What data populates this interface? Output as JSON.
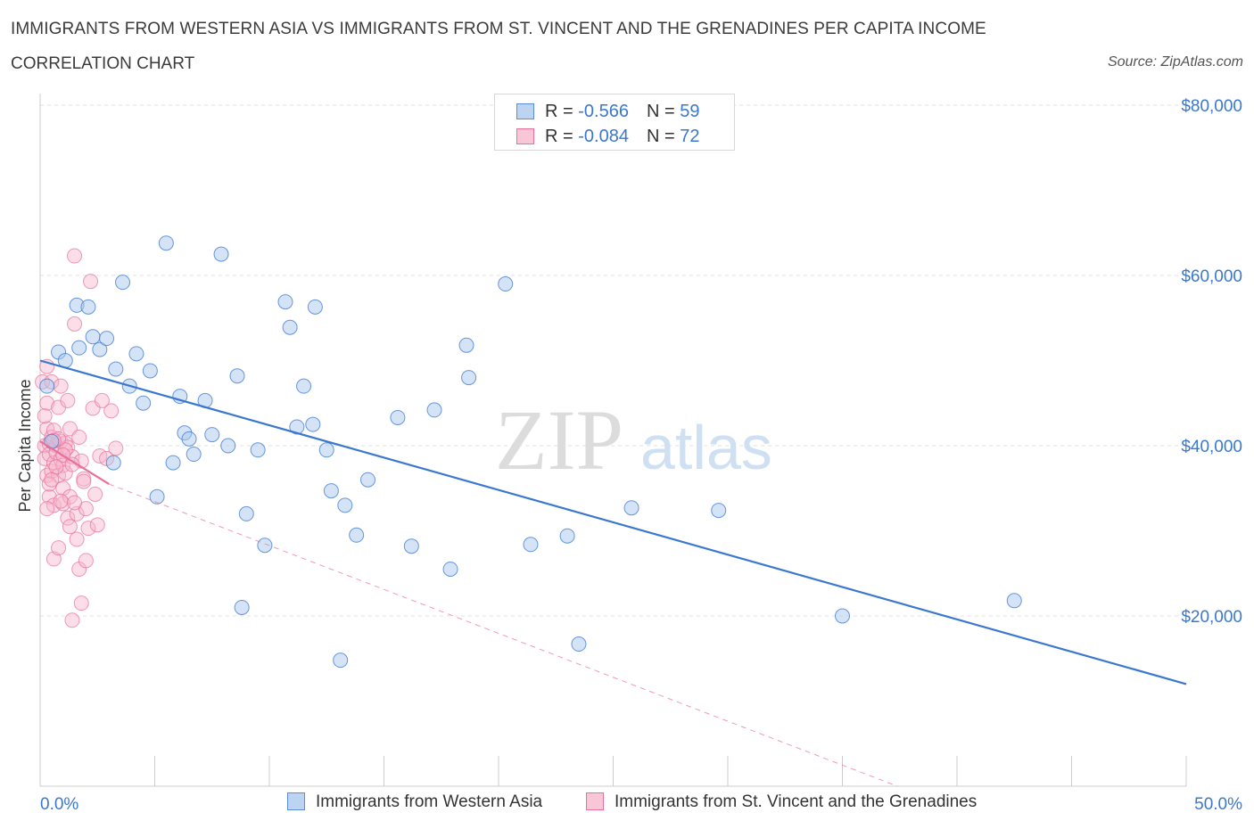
{
  "title": "IMMIGRANTS FROM WESTERN ASIA VS IMMIGRANTS FROM ST. VINCENT AND THE GRENADINES PER CAPITA INCOME",
  "subtitle": "CORRELATION CHART",
  "source": "Source: ZipAtlas.com",
  "colors": {
    "blue": "#3a78d0",
    "blue_fill": "#a9c8ee",
    "pink": "#e8709a",
    "pink_fill": "#f6b5cb",
    "axis_label": "#3a78d0",
    "grid": "#e2e2e2"
  },
  "legend": {
    "rows": [
      {
        "r_label": "R = ",
        "r_value": "-0.566",
        "n_label": "N = ",
        "n_value": "59"
      },
      {
        "r_label": "R = ",
        "r_value": "-0.084",
        "n_label": "N = ",
        "n_value": "72"
      }
    ]
  },
  "bottom_legend": [
    "Immigrants from Western Asia",
    "Immigrants from St. Vincent and the Grenadines"
  ],
  "chart_data": {
    "type": "scatter",
    "xlabel": "",
    "ylabel": "Per Capita Income",
    "xlim": [
      0,
      50
    ],
    "ylim": [
      0,
      80000
    ],
    "x_tick_labels": [
      "0.0%",
      "50.0%"
    ],
    "y_tick_labels": [
      "$20,000",
      "$40,000",
      "$60,000",
      "$80,000"
    ],
    "y_ticks": [
      20000,
      40000,
      60000,
      80000
    ],
    "grid": true,
    "series": [
      {
        "name": "Immigrants from Western Asia",
        "color": "#3a78d0",
        "trend": {
          "x": [
            0.0,
            50.0
          ],
          "y": [
            50000,
            12000
          ]
        },
        "points": [
          [
            0.3,
            47000
          ],
          [
            0.8,
            51000
          ],
          [
            1.1,
            50000
          ],
          [
            1.6,
            56500
          ],
          [
            1.7,
            51500
          ],
          [
            2.1,
            56300
          ],
          [
            2.3,
            52800
          ],
          [
            2.6,
            51300
          ],
          [
            2.9,
            52600
          ],
          [
            3.3,
            49000
          ],
          [
            3.6,
            59200
          ],
          [
            3.9,
            47000
          ],
          [
            4.2,
            50800
          ],
          [
            4.5,
            45000
          ],
          [
            4.8,
            48800
          ],
          [
            5.1,
            34000
          ],
          [
            5.5,
            63800
          ],
          [
            5.8,
            38000
          ],
          [
            6.1,
            45800
          ],
          [
            6.3,
            41500
          ],
          [
            6.5,
            40800
          ],
          [
            6.7,
            39000
          ],
          [
            7.2,
            45300
          ],
          [
            7.5,
            41300
          ],
          [
            7.9,
            62500
          ],
          [
            8.2,
            40000
          ],
          [
            8.6,
            48200
          ],
          [
            9.0,
            32000
          ],
          [
            9.5,
            39500
          ],
          [
            9.8,
            28300
          ],
          [
            10.7,
            56900
          ],
          [
            10.9,
            53900
          ],
          [
            11.2,
            42200
          ],
          [
            11.5,
            47000
          ],
          [
            11.9,
            42500
          ],
          [
            12.0,
            56300
          ],
          [
            12.5,
            39500
          ],
          [
            12.7,
            34700
          ],
          [
            13.3,
            33000
          ],
          [
            13.8,
            29500
          ],
          [
            14.3,
            36000
          ],
          [
            15.6,
            43300
          ],
          [
            16.2,
            28200
          ],
          [
            17.2,
            44200
          ],
          [
            17.9,
            25500
          ],
          [
            18.6,
            51800
          ],
          [
            18.7,
            48000
          ],
          [
            20.3,
            59000
          ],
          [
            21.4,
            28400
          ],
          [
            23.0,
            29400
          ],
          [
            23.5,
            16700
          ],
          [
            25.8,
            32700
          ],
          [
            29.6,
            32400
          ],
          [
            35.0,
            20000
          ],
          [
            42.5,
            21800
          ],
          [
            8.8,
            21000
          ],
          [
            13.1,
            14800
          ],
          [
            0.5,
            40500
          ],
          [
            3.2,
            38000
          ]
        ]
      },
      {
        "name": "Immigrants from St. Vincent and the Grenadines",
        "color": "#e8709a",
        "trend": {
          "x": [
            0.0,
            3.0
          ],
          "y": [
            40500,
            35500
          ]
        },
        "trend_dashed": {
          "x": [
            3.0,
            37.4
          ],
          "y": [
            35500,
            0
          ]
        },
        "points": [
          [
            0.1,
            47500
          ],
          [
            0.2,
            40000
          ],
          [
            0.2,
            38500
          ],
          [
            0.3,
            45000
          ],
          [
            0.3,
            36500
          ],
          [
            0.3,
            42000
          ],
          [
            0.4,
            40200
          ],
          [
            0.4,
            39000
          ],
          [
            0.4,
            34000
          ],
          [
            0.5,
            37000
          ],
          [
            0.5,
            41000
          ],
          [
            0.5,
            47500
          ],
          [
            0.6,
            38000
          ],
          [
            0.6,
            33000
          ],
          [
            0.6,
            26700
          ],
          [
            0.7,
            40000
          ],
          [
            0.7,
            39200
          ],
          [
            0.8,
            36500
          ],
          [
            0.8,
            44500
          ],
          [
            0.8,
            28000
          ],
          [
            0.9,
            40500
          ],
          [
            0.9,
            38400
          ],
          [
            1.0,
            37700
          ],
          [
            1.0,
            33200
          ],
          [
            1.0,
            35000
          ],
          [
            1.1,
            40300
          ],
          [
            1.1,
            36800
          ],
          [
            1.2,
            39800
          ],
          [
            1.2,
            31500
          ],
          [
            1.3,
            42000
          ],
          [
            1.3,
            34000
          ],
          [
            1.4,
            38700
          ],
          [
            1.4,
            19500
          ],
          [
            1.5,
            62300
          ],
          [
            1.5,
            54300
          ],
          [
            1.6,
            32000
          ],
          [
            1.6,
            29000
          ],
          [
            1.7,
            25500
          ],
          [
            1.7,
            41000
          ],
          [
            1.8,
            21500
          ],
          [
            1.8,
            38200
          ],
          [
            1.9,
            36100
          ],
          [
            2.0,
            32600
          ],
          [
            2.0,
            26500
          ],
          [
            2.1,
            30300
          ],
          [
            2.2,
            59300
          ],
          [
            2.3,
            44400
          ],
          [
            2.4,
            34300
          ],
          [
            2.5,
            30700
          ],
          [
            2.6,
            38800
          ],
          [
            2.9,
            38500
          ],
          [
            3.1,
            44100
          ],
          [
            3.3,
            39700
          ],
          [
            0.3,
            49300
          ],
          [
            0.4,
            35500
          ],
          [
            0.6,
            41800
          ],
          [
            0.7,
            37500
          ],
          [
            0.9,
            33500
          ],
          [
            1.1,
            39500
          ],
          [
            1.2,
            45300
          ],
          [
            0.2,
            43500
          ],
          [
            0.5,
            36000
          ],
          [
            0.8,
            40800
          ],
          [
            1.0,
            38900
          ],
          [
            1.4,
            37800
          ],
          [
            1.9,
            35800
          ],
          [
            0.3,
            32600
          ],
          [
            0.6,
            40600
          ],
          [
            1.5,
            33300
          ],
          [
            2.7,
            45300
          ],
          [
            0.9,
            47000
          ],
          [
            1.3,
            30500
          ]
        ]
      }
    ]
  }
}
